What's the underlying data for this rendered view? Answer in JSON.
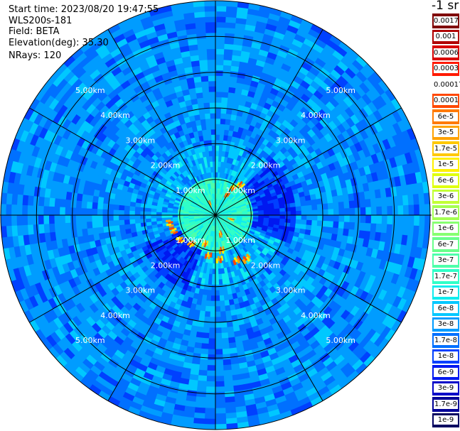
{
  "info": {
    "start_time": "Start time: 2023/08/20 19:47:55",
    "instrument": "WLS200s-181",
    "field": "Field: BETA",
    "elevation": "Elevation(deg): 35.30",
    "nrays": "NRays: 120"
  },
  "colorbar": {
    "unit": "-1 sr",
    "labels": [
      "0.0017",
      "0.001",
      "0.0006",
      "0.0003",
      "0.00017",
      "0.0001",
      "6e-5",
      "3e-5",
      "1.7e-5",
      "1e-5",
      "6e-6",
      "3e-6",
      "1.7e-6",
      "1e-6",
      "6e-7",
      "3e-7",
      "1.7e-7",
      "1e-7",
      "6e-8",
      "3e-8",
      "1.7e-8",
      "1e-8",
      "6e-9",
      "3e-9",
      "1.7e-9",
      "1e-9"
    ],
    "colors": [
      "#800000",
      "#b00000",
      "#d80000",
      "#ff1a00",
      "#ffffff",
      "#ff4800",
      "#ff7a00",
      "#ffa200",
      "#ffc800",
      "#fff000",
      "#e0ff10",
      "#c2ff36",
      "#a4ff52",
      "#86ff70",
      "#6aff8c",
      "#4effaa",
      "#30ffc8",
      "#10ecee",
      "#00c8ff",
      "#009cff",
      "#0070ff",
      "#0040ff",
      "#0018f0",
      "#0000c8",
      "#000098",
      "#000060"
    ]
  },
  "chart_data": {
    "type": "heatmap",
    "projection": "polar PPI",
    "field": "BETA",
    "nrays": 120,
    "range_rings_km": [
      1.0,
      2.0,
      3.0,
      4.0,
      5.0
    ],
    "ring_labels": [
      "1.00km",
      "2.00km",
      "3.00km",
      "4.00km",
      "5.00km"
    ],
    "azimuth_lines_deg": [
      0,
      30,
      60,
      90,
      120,
      150,
      180,
      210,
      240,
      270,
      300,
      330
    ],
    "max_range_km": 6.0,
    "scale": "log",
    "value_range": [
      1e-09,
      0.0017
    ],
    "dominant_values": {
      "background": "1e-8 to 3e-8",
      "near_center": "1.7e-7 to 1e-7",
      "hotspots": "1e-5 to 1e-4"
    }
  }
}
